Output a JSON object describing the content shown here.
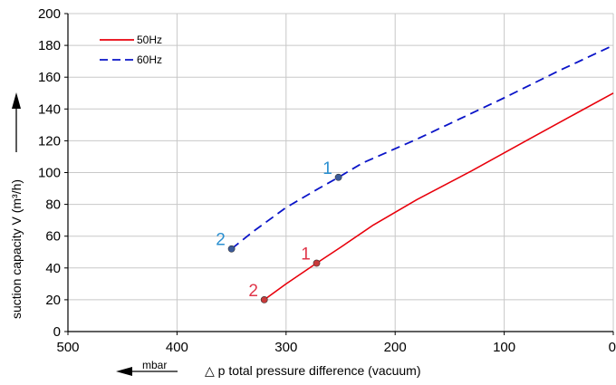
{
  "chart_data": {
    "type": "line",
    "xlabel": "△ p total pressure difference (vacuum)",
    "xunit": "mbar",
    "ylabel": "suction capacity V (m³/h)",
    "xlim": [
      500,
      0
    ],
    "ylim": [
      0,
      200
    ],
    "x_ticks": [
      "500",
      "400",
      "300",
      "200",
      "100",
      "0"
    ],
    "x_tick_values": [
      500,
      400,
      300,
      200,
      100,
      0
    ],
    "y_ticks": [
      "0",
      "20",
      "40",
      "60",
      "80",
      "100",
      "120",
      "140",
      "160",
      "180",
      "200"
    ],
    "y_tick_values": [
      0,
      20,
      40,
      60,
      80,
      100,
      120,
      140,
      160,
      180,
      200
    ],
    "grid": true,
    "legend_position": "top-left",
    "series": [
      {
        "name": "50Hz",
        "color": "#e8000b",
        "style": "solid",
        "x": [
          320,
          300,
          272,
          250,
          220,
          180,
          130,
          80,
          40,
          0
        ],
        "y": [
          20,
          30,
          43,
          53,
          67,
          83,
          101,
          120,
          135,
          150
        ]
      },
      {
        "name": "60Hz",
        "color": "#0a14c8",
        "style": "dashed",
        "x": [
          350,
          330,
          300,
          270,
          252,
          230,
          180,
          100,
          50,
          0
        ],
        "y": [
          52,
          63,
          78,
          90,
          97,
          106,
          121,
          147,
          164,
          180
        ]
      }
    ],
    "annotations": [
      {
        "text": "1",
        "series": "50Hz",
        "x": 272,
        "y": 43,
        "color": "#e0364a"
      },
      {
        "text": "2",
        "series": "50Hz",
        "x": 320,
        "y": 20,
        "color": "#e0364a"
      },
      {
        "text": "1",
        "series": "60Hz",
        "x": 252,
        "y": 97,
        "color": "#2a8fd0"
      },
      {
        "text": "2",
        "series": "60Hz",
        "x": 350,
        "y": 52,
        "color": "#2a8fd0"
      }
    ],
    "grid_color": "#c8c8c8",
    "axis_color": "#000000",
    "marker_colors": {
      "50Hz": "#c83a3a",
      "60Hz": "#3a5a9a"
    }
  }
}
